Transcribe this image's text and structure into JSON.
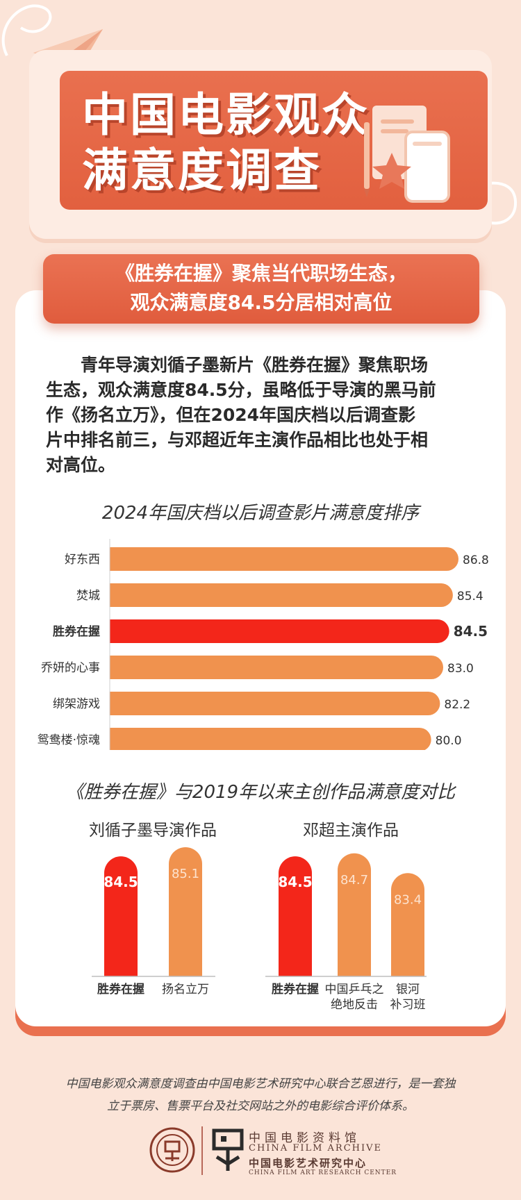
{
  "header": {
    "title_line_1": "中国电影观众",
    "title_line_2": "满意度调查"
  },
  "subtitle": {
    "line_1": "《胜券在握》聚焦当代职场生态，",
    "line_2": "观众满意度84.5分居相对高位"
  },
  "paragraph": {
    "lines": [
      "　　青年导演刘循子墨新片《胜券在握》聚焦职场",
      "生态，观众满意度84.5分，虽略低于导演的黑马前",
      "作《扬名立万》，但在2024年国庆档以后调查影",
      "片中排名前三，与邓超近年主演作品相比也处于相",
      "对高位。"
    ]
  },
  "colors": {
    "highlight": "#f3261a",
    "bar": "#f0924e",
    "banner": "#e5674a"
  },
  "chart_data": [
    {
      "type": "bar",
      "orientation": "horizontal",
      "title": "2024年国庆档以后调查影片满意度排序",
      "categories": [
        "好东西",
        "焚城",
        "胜券在握",
        "乔妍的心事",
        "绑架游戏",
        "鸳鸯楼·惊魂"
      ],
      "values": [
        86.8,
        85.4,
        84.5,
        83.0,
        82.2,
        80.0
      ],
      "value_labels": [
        "86.8",
        "85.4",
        "84.5",
        "83.0",
        "82.2",
        "80.0"
      ],
      "highlight": "胜券在握",
      "xlim": [
        0,
        86.8
      ],
      "grid": false,
      "legend": "none"
    },
    {
      "type": "bar",
      "orientation": "vertical",
      "title": "《胜券在握》与2019年以来主创作品满意度对比",
      "groups": [
        {
          "name": "刘循子墨导演作品",
          "categories": [
            "胜券在握",
            "扬名立万"
          ],
          "category_lines": [
            [
              "胜券在握"
            ],
            [
              "扬名立万"
            ]
          ],
          "values": [
            84.5,
            85.1
          ],
          "value_labels": [
            "84.5",
            "85.1"
          ]
        },
        {
          "name": "邓超主演作品",
          "categories": [
            "胜券在握",
            "中国乒乓之绝地反击",
            "银河补习班"
          ],
          "category_lines": [
            [
              "胜券在握"
            ],
            [
              "中国乒乓之",
              "绝地反击"
            ],
            [
              "银河",
              "补习班"
            ]
          ],
          "values": [
            84.5,
            84.7,
            83.4
          ],
          "value_labels": [
            "84.5",
            "84.7",
            "83.4"
          ]
        }
      ],
      "highlight": "胜券在握",
      "grid": false,
      "legend": "none"
    }
  ],
  "footer": {
    "line_1": "中国电影观众满意度调查由中国电影艺术研究中心联合艺恩进行，是一套独",
    "line_2": "立于票房、售票平台及社交网站之外的电影综合评价体系。",
    "org_cn_1": "中国电影资料馆",
    "org_en_1": "CHINA FILM ARCHIVE",
    "org_cn_2": "中国电影艺术研究中心",
    "org_en_2": "CHINA FILM ART RESEARCH CENTER"
  }
}
